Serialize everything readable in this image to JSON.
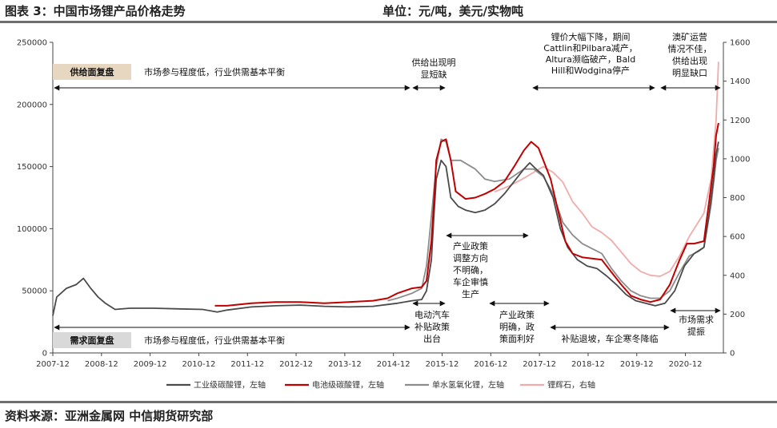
{
  "header": {
    "title": "图表 3：中国市场锂产品价格走势",
    "unit": "单位：元/吨，美元/实物吨"
  },
  "footer": {
    "source": "资料来源：亚洲金属网 中信期货研究部"
  },
  "chart_data": {
    "type": "line",
    "x_tick_labels": [
      "2007-12",
      "2008-12",
      "2009-12",
      "2010-12",
      "2011-12",
      "2012-12",
      "2013-12",
      "2014-12",
      "2015-12",
      "2016-12",
      "2017-12",
      "2018-12",
      "2019-12",
      "2020-12"
    ],
    "y_left": {
      "ticks": [
        0,
        50000,
        100000,
        150000,
        200000,
        250000
      ],
      "ylim": [
        0,
        250000
      ]
    },
    "y_right": {
      "ticks": [
        0,
        200,
        400,
        600,
        800,
        1000,
        1200,
        1400,
        1600
      ],
      "ylim": [
        0,
        1600
      ]
    },
    "grid": false,
    "legend_position": "bottom",
    "series": [
      {
        "name": "工业级碳酸锂，左轴",
        "axis": "left",
        "color": "#4a4a4a",
        "points": [
          [
            2007.92,
            30000
          ],
          [
            2008.0,
            45000
          ],
          [
            2008.2,
            52000
          ],
          [
            2008.4,
            55000
          ],
          [
            2008.55,
            60000
          ],
          [
            2008.7,
            52000
          ],
          [
            2008.85,
            45000
          ],
          [
            2009.0,
            40000
          ],
          [
            2009.2,
            35000
          ],
          [
            2009.5,
            36000
          ],
          [
            2010.0,
            36000
          ],
          [
            2010.5,
            35500
          ],
          [
            2011.0,
            35000
          ],
          [
            2011.3,
            33000
          ],
          [
            2011.5,
            34500
          ],
          [
            2012.0,
            37000
          ],
          [
            2012.5,
            38000
          ],
          [
            2013.0,
            38500
          ],
          [
            2013.5,
            37500
          ],
          [
            2014.0,
            37000
          ],
          [
            2014.5,
            37500
          ],
          [
            2014.8,
            39000
          ],
          [
            2015.0,
            40000
          ],
          [
            2015.3,
            42000
          ],
          [
            2015.5,
            43000
          ],
          [
            2015.6,
            50000
          ],
          [
            2015.7,
            75000
          ],
          [
            2015.75,
            110000
          ],
          [
            2015.8,
            140000
          ],
          [
            2015.9,
            155000
          ],
          [
            2016.0,
            150000
          ],
          [
            2016.1,
            125000
          ],
          [
            2016.25,
            118000
          ],
          [
            2016.4,
            115000
          ],
          [
            2016.6,
            113000
          ],
          [
            2016.8,
            115000
          ],
          [
            2017.0,
            120000
          ],
          [
            2017.2,
            128000
          ],
          [
            2017.4,
            138000
          ],
          [
            2017.6,
            148000
          ],
          [
            2017.72,
            153000
          ],
          [
            2017.85,
            148000
          ],
          [
            2018.0,
            143000
          ],
          [
            2018.2,
            125000
          ],
          [
            2018.35,
            100000
          ],
          [
            2018.5,
            85000
          ],
          [
            2018.7,
            75000
          ],
          [
            2018.9,
            70000
          ],
          [
            2019.1,
            68000
          ],
          [
            2019.3,
            62000
          ],
          [
            2019.5,
            55000
          ],
          [
            2019.7,
            47000
          ],
          [
            2019.9,
            42000
          ],
          [
            2020.1,
            40000
          ],
          [
            2020.3,
            38000
          ],
          [
            2020.5,
            40000
          ],
          [
            2020.7,
            50000
          ],
          [
            2020.9,
            70000
          ],
          [
            2021.1,
            80000
          ],
          [
            2021.3,
            85000
          ],
          [
            2021.4,
            110000
          ],
          [
            2021.5,
            140000
          ],
          [
            2021.55,
            160000
          ],
          [
            2021.6,
            170000
          ]
        ]
      },
      {
        "name": "电池级碳酸锂，左轴",
        "axis": "left",
        "color": "#c00000",
        "points": [
          [
            2011.25,
            38000
          ],
          [
            2011.5,
            38000
          ],
          [
            2012.0,
            40000
          ],
          [
            2012.5,
            41000
          ],
          [
            2013.0,
            41000
          ],
          [
            2013.5,
            40000
          ],
          [
            2014.0,
            41000
          ],
          [
            2014.5,
            42000
          ],
          [
            2014.8,
            44000
          ],
          [
            2015.0,
            48000
          ],
          [
            2015.3,
            52000
          ],
          [
            2015.5,
            53000
          ],
          [
            2015.6,
            58000
          ],
          [
            2015.7,
            90000
          ],
          [
            2015.75,
            120000
          ],
          [
            2015.8,
            155000
          ],
          [
            2015.9,
            170000
          ],
          [
            2016.0,
            172000
          ],
          [
            2016.1,
            155000
          ],
          [
            2016.2,
            130000
          ],
          [
            2016.4,
            124000
          ],
          [
            2016.6,
            125000
          ],
          [
            2016.8,
            128000
          ],
          [
            2017.0,
            132000
          ],
          [
            2017.2,
            138000
          ],
          [
            2017.4,
            150000
          ],
          [
            2017.6,
            163000
          ],
          [
            2017.75,
            170000
          ],
          [
            2017.9,
            165000
          ],
          [
            2018.0,
            155000
          ],
          [
            2018.15,
            140000
          ],
          [
            2018.3,
            115000
          ],
          [
            2018.45,
            90000
          ],
          [
            2018.6,
            80000
          ],
          [
            2018.8,
            77000
          ],
          [
            2019.0,
            76000
          ],
          [
            2019.2,
            75000
          ],
          [
            2019.4,
            65000
          ],
          [
            2019.6,
            55000
          ],
          [
            2019.8,
            46000
          ],
          [
            2020.0,
            43000
          ],
          [
            2020.2,
            41000
          ],
          [
            2020.4,
            43000
          ],
          [
            2020.6,
            55000
          ],
          [
            2020.8,
            75000
          ],
          [
            2020.95,
            88000
          ],
          [
            2021.1,
            88000
          ],
          [
            2021.3,
            90000
          ],
          [
            2021.4,
            120000
          ],
          [
            2021.5,
            150000
          ],
          [
            2021.55,
            175000
          ],
          [
            2021.6,
            185000
          ]
        ]
      },
      {
        "name": "单水氢氧化锂，左轴",
        "axis": "left",
        "color": "#8c8c8c",
        "points": [
          [
            2014.8,
            42000
          ],
          [
            2015.0,
            44000
          ],
          [
            2015.3,
            48000
          ],
          [
            2015.5,
            52000
          ],
          [
            2015.6,
            70000
          ],
          [
            2015.7,
            110000
          ],
          [
            2015.8,
            150000
          ],
          [
            2015.9,
            172000
          ],
          [
            2016.0,
            170000
          ],
          [
            2016.1,
            155000
          ],
          [
            2016.3,
            155000
          ],
          [
            2016.6,
            148000
          ],
          [
            2016.8,
            140000
          ],
          [
            2017.0,
            138000
          ],
          [
            2017.3,
            140000
          ],
          [
            2017.6,
            148000
          ],
          [
            2017.8,
            148000
          ],
          [
            2018.0,
            142000
          ],
          [
            2018.2,
            128000
          ],
          [
            2018.4,
            105000
          ],
          [
            2018.6,
            95000
          ],
          [
            2018.8,
            88000
          ],
          [
            2019.0,
            84000
          ],
          [
            2019.2,
            80000
          ],
          [
            2019.4,
            68000
          ],
          [
            2019.6,
            58000
          ],
          [
            2019.8,
            50000
          ],
          [
            2020.0,
            46000
          ],
          [
            2020.2,
            44000
          ],
          [
            2020.4,
            44000
          ],
          [
            2020.6,
            50000
          ],
          [
            2020.8,
            65000
          ],
          [
            2021.0,
            78000
          ],
          [
            2021.2,
            82000
          ],
          [
            2021.3,
            85000
          ],
          [
            2021.45,
            120000
          ],
          [
            2021.55,
            155000
          ],
          [
            2021.6,
            165000
          ]
        ]
      },
      {
        "name": "锂辉石，右轴",
        "axis": "right",
        "color": "#f2aaaa",
        "points": [
          [
            2017.0,
            830
          ],
          [
            2017.3,
            860
          ],
          [
            2017.6,
            900
          ],
          [
            2017.8,
            930
          ],
          [
            2018.0,
            960
          ],
          [
            2018.2,
            930
          ],
          [
            2018.4,
            880
          ],
          [
            2018.6,
            780
          ],
          [
            2018.8,
            720
          ],
          [
            2019.0,
            650
          ],
          [
            2019.2,
            620
          ],
          [
            2019.4,
            580
          ],
          [
            2019.6,
            520
          ],
          [
            2019.8,
            460
          ],
          [
            2020.0,
            420
          ],
          [
            2020.2,
            400
          ],
          [
            2020.4,
            395
          ],
          [
            2020.6,
            420
          ],
          [
            2020.8,
            500
          ],
          [
            2021.0,
            600
          ],
          [
            2021.2,
            680
          ],
          [
            2021.3,
            720
          ],
          [
            2021.45,
            900
          ],
          [
            2021.55,
            1200
          ],
          [
            2021.6,
            1500
          ]
        ]
      }
    ],
    "annotations": {
      "supply_label": "供给面复盘",
      "demand_label": "需求面复盘",
      "supply_note": "市场参与程度低，行业供需基本平衡",
      "demand_note": "市场参与程度低，行业供需基本平衡",
      "supply_shortage": [
        "供给出现明",
        "显短缺"
      ],
      "price_drop": [
        "锂价大幅下降，期间",
        "Cattlin和Pilbara减产，",
        "Altura濒临破产，Bald",
        "Hill和Wodgina停产"
      ],
      "australia": [
        "澳矿运营",
        "情况不佳，",
        "供给出现",
        "明显缺口"
      ],
      "industry_policy": [
        "产业政策",
        "调整方向",
        "不明确，",
        "车企审慎",
        "生产"
      ],
      "ev_subsidy": [
        "电动汽车",
        "补贴政策",
        "出台"
      ],
      "policy_clear": [
        "产业政策",
        "明确，政",
        "策面利好"
      ],
      "subsidy_cut": "补贴退坡，车企寒冬降临",
      "demand_up": [
        "市场需求",
        "提振"
      ]
    }
  }
}
